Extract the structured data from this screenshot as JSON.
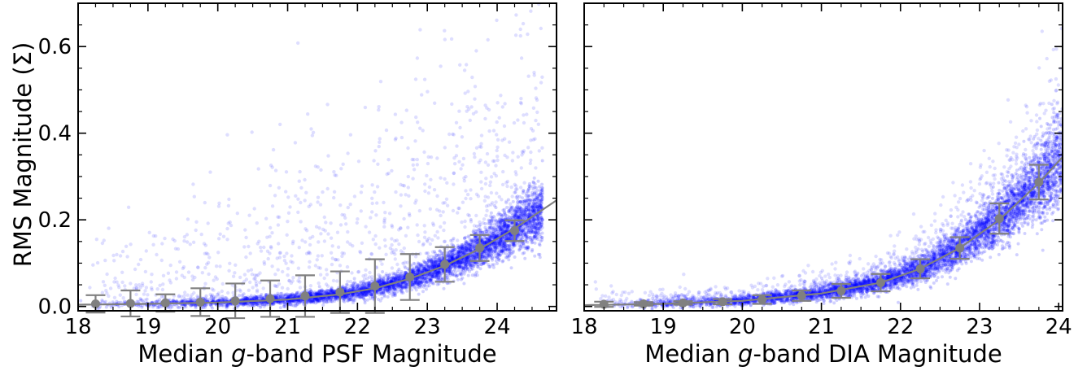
{
  "figure": {
    "ylabel": "RMS Magnitude (Σ)"
  },
  "colors": {
    "points": "#0000ff",
    "trend": "#808080",
    "binned": "#808080",
    "frame": "#000000"
  },
  "chart_data": [
    {
      "type": "scatter",
      "title": "",
      "xlabel_pre": "Median ",
      "xlabel_ital": "g",
      "xlabel_post": "-band PSF Magnitude",
      "ylabel": "RMS Magnitude (Σ)",
      "xlim": [
        18.0,
        24.85
      ],
      "ylim": [
        -0.01,
        0.7
      ],
      "xticks": [
        18,
        19,
        20,
        21,
        22,
        23,
        24
      ],
      "yticks": [
        0.0,
        0.2,
        0.4,
        0.6
      ],
      "grid": false,
      "scatter_cutoff": 24.65,
      "trend": {
        "x": [
          18.0,
          19.0,
          20.0,
          21.0,
          21.75,
          22.25,
          22.75,
          23.25,
          23.75,
          24.25,
          24.85
        ],
        "y": [
          0.004,
          0.006,
          0.009,
          0.016,
          0.028,
          0.042,
          0.064,
          0.094,
          0.133,
          0.18,
          0.245
        ]
      },
      "binned": {
        "x": [
          18.25,
          18.75,
          19.25,
          19.75,
          20.25,
          20.75,
          21.25,
          21.75,
          22.25,
          22.75,
          23.25,
          23.75,
          24.25
        ],
        "y": [
          0.006,
          0.007,
          0.008,
          0.01,
          0.013,
          0.018,
          0.024,
          0.033,
          0.047,
          0.068,
          0.097,
          0.135,
          0.175
        ],
        "err": [
          0.02,
          0.03,
          0.02,
          0.032,
          0.04,
          0.042,
          0.048,
          0.048,
          0.062,
          0.053,
          0.04,
          0.03,
          0.024
        ]
      }
    },
    {
      "type": "scatter",
      "title": "",
      "xlabel_pre": "Median ",
      "xlabel_ital": "g",
      "xlabel_post": "-band DIA Magnitude",
      "ylabel": "",
      "xlim": [
        18.0,
        24.05
      ],
      "ylim": [
        -0.01,
        0.7
      ],
      "xticks": [
        18,
        19,
        20,
        21,
        22,
        23,
        24
      ],
      "yticks": [
        0.0,
        0.2,
        0.4,
        0.6
      ],
      "grid": false,
      "scatter_cutoff": 24.05,
      "trend": {
        "x": [
          18.0,
          19.0,
          20.0,
          21.0,
          21.75,
          22.25,
          22.75,
          23.25,
          23.75,
          24.05
        ],
        "y": [
          0.003,
          0.006,
          0.013,
          0.03,
          0.055,
          0.087,
          0.135,
          0.2,
          0.285,
          0.345
        ]
      },
      "binned": {
        "x": [
          18.25,
          18.75,
          19.25,
          19.75,
          20.25,
          20.75,
          21.25,
          21.75,
          22.25,
          22.75,
          23.25,
          23.75
        ],
        "y": [
          0.005,
          0.006,
          0.008,
          0.011,
          0.016,
          0.025,
          0.036,
          0.055,
          0.087,
          0.135,
          0.203,
          0.287
        ],
        "err": [
          0.006,
          0.004,
          0.004,
          0.006,
          0.01,
          0.012,
          0.016,
          0.02,
          0.022,
          0.025,
          0.035,
          0.04
        ]
      }
    }
  ]
}
